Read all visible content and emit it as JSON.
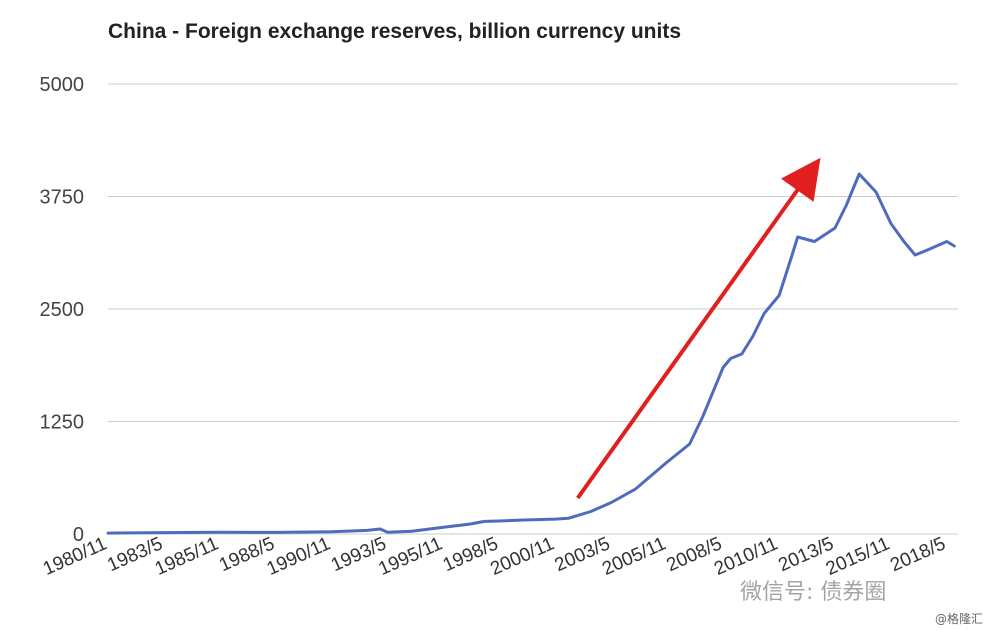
{
  "chart_data": {
    "type": "line",
    "title": "China - Foreign exchange reserves, billion currency units",
    "xlabel": "",
    "ylabel": "",
    "ylim": [
      0,
      5000
    ],
    "yticks": [
      0,
      1250,
      2500,
      3750,
      5000
    ],
    "xtick_labels": [
      "1980/11",
      "1983/5",
      "1985/11",
      "1988/5",
      "1990/11",
      "1993/5",
      "1995/11",
      "1998/5",
      "2000/11",
      "2003/5",
      "2005/11",
      "2008/5",
      "2010/11",
      "2013/5",
      "2015/11",
      "2018/5"
    ],
    "grid": true,
    "legend": "none",
    "series": [
      {
        "color": "#4f6bbd",
        "x": [
          "1980/11",
          "1983/5",
          "1985/11",
          "1988/5",
          "1990/11",
          "1992/6",
          "1993/1",
          "1993/5",
          "1994/6",
          "1995/11",
          "1997/1",
          "1997/9",
          "1998/5",
          "1999/6",
          "2000/11",
          "2001/6",
          "2002/6",
          "2003/5",
          "2004/6",
          "2005/11",
          "2006/11",
          "2007/6",
          "2008/5",
          "2008/9",
          "2009/3",
          "2009/9",
          "2010/3",
          "2010/11",
          "2011/6",
          "2011/9",
          "2012/6",
          "2013/5",
          "2013/11",
          "2014/6",
          "2015/3",
          "2015/11",
          "2016/6",
          "2016/12",
          "2017/6",
          "2018/5",
          "2018/9"
        ],
        "y": [
          10,
          15,
          20,
          18,
          25,
          40,
          55,
          20,
          30,
          75,
          110,
          140,
          145,
          155,
          165,
          175,
          250,
          350,
          500,
          800,
          1000,
          1300,
          1850,
          1950,
          2000,
          2200,
          2450,
          2650,
          3100,
          3300,
          3250,
          3400,
          3650,
          4000,
          3800,
          3450,
          3250,
          3100,
          3150,
          3250,
          3200
        ]
      }
    ],
    "annotations": [
      {
        "type": "arrow",
        "color": "#e02020",
        "from": [
          "2001/11",
          400
        ],
        "to": [
          "2012/3",
          4000
        ]
      }
    ]
  },
  "watermark": {
    "line1": "微信号: ",
    "line2": "债券圈",
    "small": "@格隆汇"
  }
}
